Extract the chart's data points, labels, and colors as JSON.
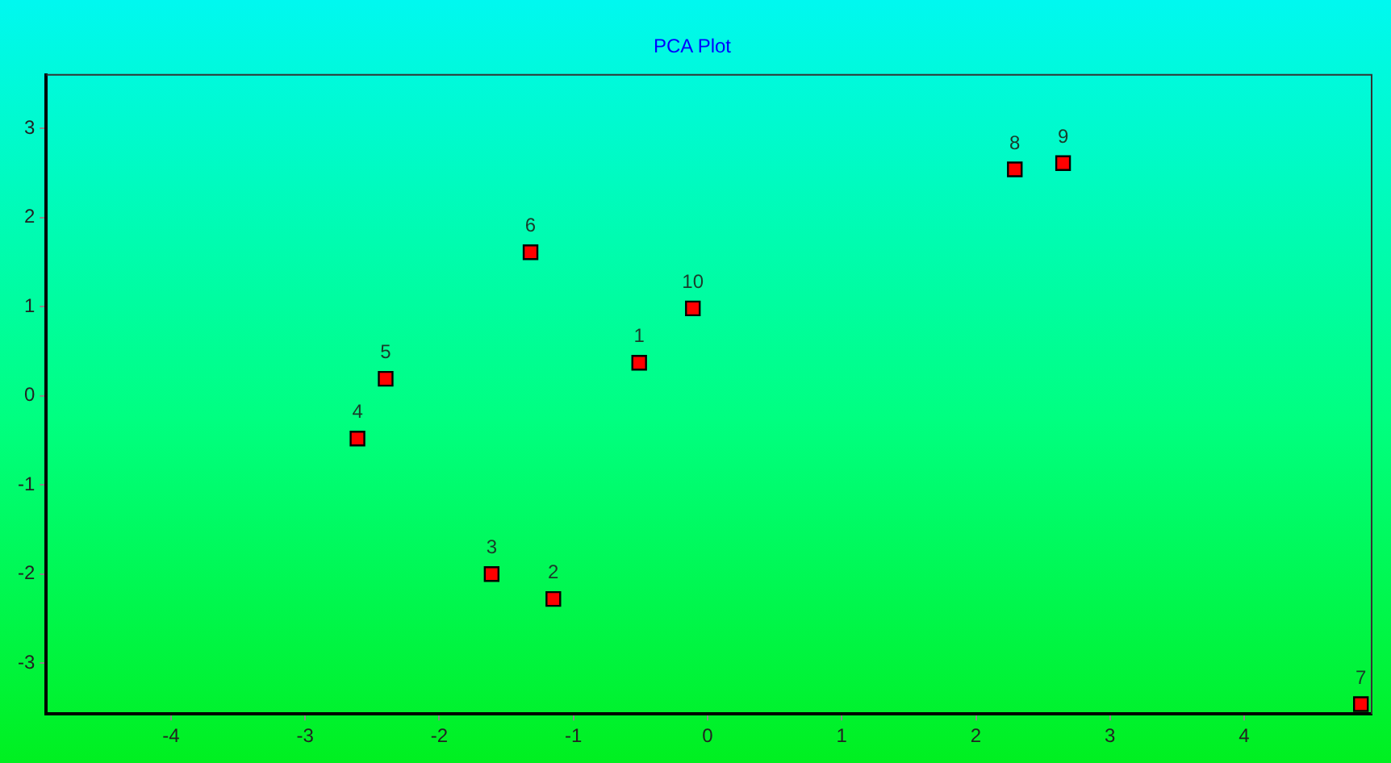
{
  "chart_data": {
    "type": "scatter",
    "title": "PCA Plot",
    "x": [
      -0.51,
      -1.15,
      -1.61,
      -2.61,
      -2.4,
      -1.32,
      4.87,
      2.29,
      2.65,
      -0.11
    ],
    "series": [
      {
        "color": "#ff0000",
        "values": [
          0.37,
          -2.28,
          -2.0,
          -0.48,
          0.19,
          1.61,
          -3.46,
          2.54,
          2.61,
          0.98
        ]
      }
    ],
    "annotations": [
      {
        "text": "1",
        "x": -0.51,
        "y": 0.37
      },
      {
        "text": "2",
        "x": -1.15,
        "y": -2.28
      },
      {
        "text": "3",
        "x": -1.61,
        "y": -2.0
      },
      {
        "text": "4",
        "x": -2.61,
        "y": -0.48
      },
      {
        "text": "5",
        "x": -2.4,
        "y": 0.19
      },
      {
        "text": "6",
        "x": -1.32,
        "y": 1.61
      },
      {
        "text": "7",
        "x": 4.87,
        "y": -3.46
      },
      {
        "text": "8",
        "x": 2.29,
        "y": 2.54
      },
      {
        "text": "9",
        "x": 2.65,
        "y": 2.61
      },
      {
        "text": "10",
        "x": -0.11,
        "y": 0.98
      }
    ],
    "xlim": [
      -4.93,
      4.95
    ],
    "xticks": [
      -4,
      -3,
      -2,
      -1,
      0,
      1,
      2,
      3,
      4
    ],
    "ylim": [
      -3.57,
      3.6
    ],
    "yticks": [
      -3,
      -2,
      -1,
      0,
      1,
      2,
      3
    ],
    "marker": "square",
    "grid": false,
    "legend": false
  }
}
